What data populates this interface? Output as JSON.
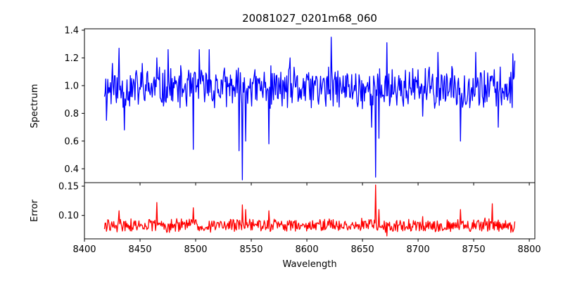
{
  "chart_data": [
    {
      "panel": "top",
      "type": "line",
      "title": "20081027_0201m68_060",
      "ylabel": "Spectrum",
      "xlabel": "",
      "xlim": [
        8400,
        8805
      ],
      "ylim": [
        0.3,
        1.41
      ],
      "xticks": [
        8400,
        8450,
        8500,
        8550,
        8600,
        8650,
        8700,
        8750,
        8800
      ],
      "yticks": [
        0.4,
        0.6,
        0.8,
        1.0,
        1.2,
        1.4
      ],
      "ytick_labels": [
        "0.4",
        "0.6",
        "0.8",
        "1.0",
        "1.2",
        "1.4"
      ],
      "show_xtick_labels": false,
      "grid": false,
      "color": "#0000ff",
      "series": [
        {
          "x_start": 8418,
          "x_end": 8787,
          "samples": 620,
          "seed": 11,
          "baseline": 0.98,
          "noise": 0.17,
          "clip": [
            0.56,
            1.28
          ],
          "features": [
            {
              "x": 8420,
              "y": 0.75
            },
            {
              "x": 8425,
              "y": 1.16
            },
            {
              "x": 8431,
              "y": 1.27
            },
            {
              "x": 8436,
              "y": 0.68
            },
            {
              "x": 8452,
              "y": 1.16
            },
            {
              "x": 8465,
              "y": 1.2
            },
            {
              "x": 8475,
              "y": 1.26
            },
            {
              "x": 8498,
              "y": 0.54
            },
            {
              "x": 8503,
              "y": 1.26
            },
            {
              "x": 8512,
              "y": 1.26
            },
            {
              "x": 8542,
              "y": 0.32
            },
            {
              "x": 8539,
              "y": 0.53
            },
            {
              "x": 8545,
              "y": 0.6
            },
            {
              "x": 8549,
              "y": 1.05
            },
            {
              "x": 8566,
              "y": 0.58
            },
            {
              "x": 8585,
              "y": 1.2
            },
            {
              "x": 8622,
              "y": 1.35
            },
            {
              "x": 8658,
              "y": 0.7
            },
            {
              "x": 8662,
              "y": 0.34
            },
            {
              "x": 8665,
              "y": 0.62
            },
            {
              "x": 8672,
              "y": 1.31
            },
            {
              "x": 8704,
              "y": 0.78
            },
            {
              "x": 8718,
              "y": 1.24
            },
            {
              "x": 8738,
              "y": 0.6
            },
            {
              "x": 8752,
              "y": 1.24
            },
            {
              "x": 8772,
              "y": 0.7
            },
            {
              "x": 8785,
              "y": 1.23
            },
            {
              "x": 8787,
              "y": 1.18
            }
          ]
        }
      ]
    },
    {
      "panel": "bottom",
      "type": "line",
      "title": "",
      "ylabel": "Error",
      "xlabel": "Wavelength",
      "xlim": [
        8400,
        8805
      ],
      "ylim": [
        0.06,
        0.156
      ],
      "xticks": [
        8400,
        8450,
        8500,
        8550,
        8600,
        8650,
        8700,
        8750,
        8800
      ],
      "xtick_labels": [
        "8400",
        "8450",
        "8500",
        "8550",
        "8600",
        "8650",
        "8700",
        "8750",
        "8800"
      ],
      "yticks": [
        0.1,
        0.15
      ],
      "ytick_labels": [
        "0.10",
        "0.15"
      ],
      "grid": false,
      "color": "#ff0000",
      "series": [
        {
          "x_start": 8418,
          "x_end": 8787,
          "samples": 620,
          "seed": 29,
          "baseline": 0.083,
          "noise": 0.013,
          "clip": [
            0.071,
            0.1
          ],
          "features": [
            {
              "x": 8420,
              "y": 0.073
            },
            {
              "x": 8431,
              "y": 0.108
            },
            {
              "x": 8465,
              "y": 0.122
            },
            {
              "x": 8469,
              "y": 0.09
            },
            {
              "x": 8498,
              "y": 0.113
            },
            {
              "x": 8542,
              "y": 0.118
            },
            {
              "x": 8545,
              "y": 0.11
            },
            {
              "x": 8566,
              "y": 0.108
            },
            {
              "x": 8652,
              "y": 0.09
            },
            {
              "x": 8662,
              "y": 0.152
            },
            {
              "x": 8665,
              "y": 0.11
            },
            {
              "x": 8672,
              "y": 0.065
            },
            {
              "x": 8704,
              "y": 0.098
            },
            {
              "x": 8738,
              "y": 0.11
            },
            {
              "x": 8767,
              "y": 0.12
            },
            {
              "x": 8786,
              "y": 0.075
            }
          ]
        }
      ]
    }
  ]
}
